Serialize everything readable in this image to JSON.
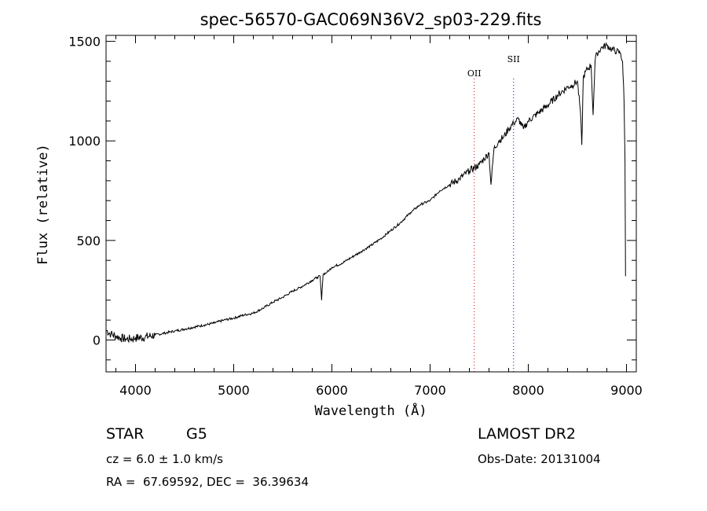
{
  "chart_data": {
    "type": "line",
    "title": "spec-56570-GAC069N36V2_sp03-229.fits",
    "xlabel": "Wavelength (Å)",
    "ylabel": "Flux (relative)",
    "xlim": [
      3700,
      9100
    ],
    "ylim": [
      -160,
      1530
    ],
    "xticks": [
      4000,
      5000,
      6000,
      7000,
      8000,
      9000
    ],
    "yticks": [
      0,
      500,
      1000,
      1500
    ],
    "grid": false,
    "series": [
      {
        "x": [
          3700,
          3750,
          3800,
          3850,
          3900,
          3950,
          4000,
          4100,
          4200,
          4300,
          4400,
          4500,
          4600,
          4700,
          4800,
          4900,
          5000,
          5100,
          5200,
          5300,
          5400,
          5500,
          5600,
          5700,
          5800,
          5850,
          5880,
          5895,
          5910,
          5950,
          6000,
          6100,
          6200,
          6300,
          6400,
          6500,
          6600,
          6700,
          6800,
          6900,
          7000,
          7100,
          7200,
          7300,
          7400,
          7500,
          7550,
          7600,
          7620,
          7650,
          7700,
          7750,
          7800,
          7850,
          7900,
          7950,
          8000,
          8100,
          8200,
          8300,
          8400,
          8450,
          8500,
          8530,
          8545,
          8560,
          8600,
          8640,
          8660,
          8680,
          8700,
          8750,
          8800,
          8850,
          8900,
          8940,
          8960,
          8975,
          8985,
          8990
        ],
        "y": [
          50,
          30,
          20,
          10,
          5,
          5,
          10,
          15,
          25,
          35,
          45,
          55,
          65,
          75,
          85,
          100,
          110,
          125,
          135,
          160,
          190,
          215,
          245,
          270,
          300,
          315,
          320,
          200,
          330,
          340,
          365,
          385,
          415,
          445,
          475,
          510,
          550,
          590,
          640,
          680,
          700,
          750,
          780,
          810,
          850,
          880,
          910,
          940,
          780,
          960,
          1000,
          1020,
          1060,
          1090,
          1110,
          1060,
          1100,
          1140,
          1180,
          1230,
          1270,
          1280,
          1300,
          1150,
          980,
          1320,
          1360,
          1380,
          1130,
          1400,
          1440,
          1470,
          1480,
          1460,
          1450,
          1440,
          1400,
          1200,
          900,
          320
        ]
      }
    ],
    "vlines": [
      {
        "label": "OII",
        "x": 7450,
        "color": "#cc0000"
      },
      {
        "label": "SII",
        "x": 7850,
        "color": "#0000cc"
      }
    ]
  },
  "info": {
    "object_class": "STAR",
    "subclass": "G5",
    "survey": "LAMOST DR2",
    "cz": "cz = 6.0 ± 1.0 km/s",
    "obs_date": "Obs-Date: 20131004",
    "coords": "RA =  67.69592, DEC =  36.39634"
  }
}
